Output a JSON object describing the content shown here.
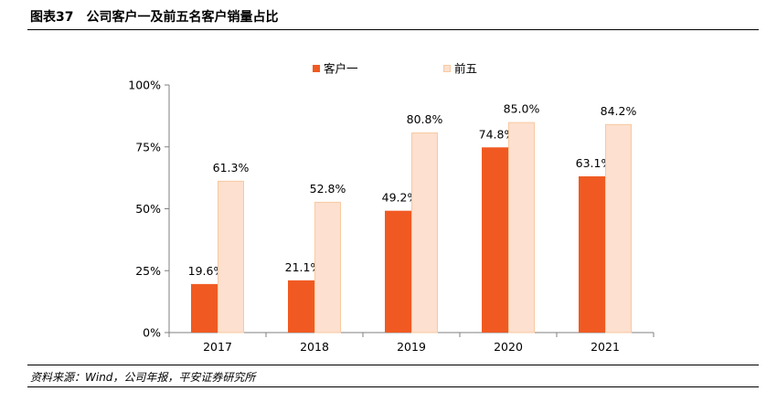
{
  "header": {
    "label": "图表37",
    "title": "公司客户一及前五名客户销量占比"
  },
  "source": "资料来源：Wind，公司年报，平安证券研究所",
  "colors": {
    "series1_fill": "#F05A22",
    "series2_fill": "#FDE0CF",
    "series2_stroke": "#F8C9A0",
    "axis": "#7F7F7F"
  },
  "chart_data": {
    "type": "bar",
    "categories": [
      "2017",
      "2018",
      "2019",
      "2020",
      "2021"
    ],
    "series": [
      {
        "name": "客户一",
        "values": [
          19.6,
          21.1,
          49.2,
          74.8,
          63.1
        ],
        "labels": [
          "19.6%",
          "21.1%",
          "49.2%",
          "74.8%",
          "63.1%"
        ]
      },
      {
        "name": "前五",
        "values": [
          61.3,
          52.8,
          80.8,
          85.0,
          84.2
        ],
        "labels": [
          "61.3%",
          "52.8%",
          "80.8%",
          "85.0%",
          "84.2%"
        ]
      }
    ],
    "ylim": [
      0,
      100
    ],
    "yticks": [
      0,
      25,
      50,
      75,
      100
    ],
    "ytick_labels": [
      "0%",
      "25%",
      "50%",
      "75%",
      "100%"
    ],
    "grid": false,
    "legend_position": "top"
  }
}
